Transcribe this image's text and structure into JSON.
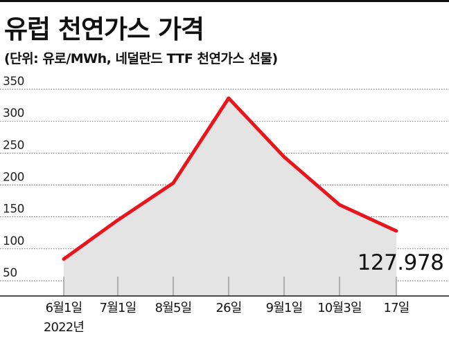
{
  "title": "유럽 천연가스 가격",
  "subtitle": "(단위: 유로/MWh, 네덜란드 TTF 천연가스 선물)",
  "colors": {
    "line": "#e8161c",
    "area": "#e4e4e4",
    "grid": "#222222",
    "text": "#111111"
  },
  "chart_data": {
    "type": "area",
    "title": "유럽 천연가스 가격",
    "subtitle": "(단위: 유로/MWh, 네덜란드 TTF 천연가스 선물)",
    "xlabel": "",
    "ylabel": "",
    "categories": [
      "6월1일",
      "7월1일",
      "8월5일",
      "26일",
      "9월1일",
      "10월3일",
      "17일"
    ],
    "x_sublabels": [
      "2022년",
      "",
      "",
      "",
      "",
      "",
      ""
    ],
    "values": [
      84,
      145,
      203,
      336,
      244,
      169,
      127.978
    ],
    "ylim": [
      50,
      350
    ],
    "yticks": [
      50,
      100,
      150,
      200,
      250,
      300,
      350
    ],
    "grid": true,
    "annotations": [
      {
        "category": "17일",
        "text": "127.978"
      }
    ]
  }
}
